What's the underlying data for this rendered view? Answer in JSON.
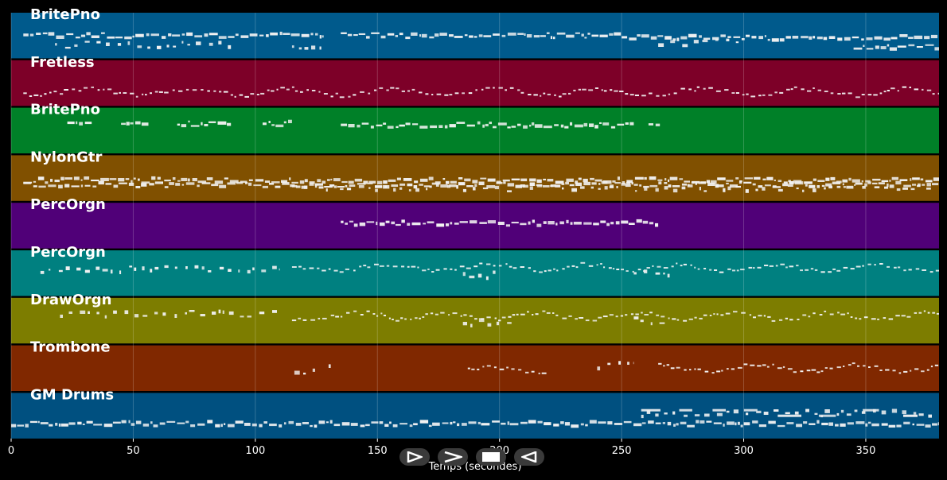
{
  "chart_data": {
    "type": "piano-roll",
    "xlabel": "Temps (secondes)",
    "x_ticks": [
      0,
      50,
      100,
      150,
      200,
      250,
      300,
      350
    ],
    "xlim": [
      0,
      380
    ],
    "tracks": [
      {
        "name": "BritePno",
        "color": "#005a8c",
        "segments": [
          [
            5,
            128,
            0.5,
            "dense"
          ],
          [
            135,
            250,
            0.5,
            "dense"
          ],
          [
            250,
            380,
            0.55,
            "dense"
          ],
          [
            18,
            90,
            0.7,
            "sparse"
          ],
          [
            115,
            127,
            0.8,
            "sparse"
          ],
          [
            265,
            300,
            0.65,
            "sparse"
          ],
          [
            345,
            380,
            0.75,
            "dense"
          ]
        ]
      },
      {
        "name": "Fretless",
        "color": "#7d0028",
        "segments": [
          [
            5,
            380,
            0.7,
            "wave"
          ]
        ]
      },
      {
        "name": "BritePno",
        "color": "#008028",
        "segments": [
          [
            23,
            33,
            0.35,
            "dense"
          ],
          [
            45,
            57,
            0.35,
            "dense"
          ],
          [
            68,
            90,
            0.35,
            "dense"
          ],
          [
            103,
            115,
            0.35,
            "dense"
          ],
          [
            135,
            255,
            0.38,
            "dense"
          ],
          [
            261,
            266,
            0.38,
            "dense"
          ]
        ]
      },
      {
        "name": "NylonGtr",
        "color": "#805000",
        "segments": [
          [
            5,
            380,
            0.55,
            "dense"
          ],
          [
            5,
            380,
            0.65,
            "dense"
          ],
          [
            115,
            380,
            0.72,
            "sparse"
          ]
        ]
      },
      {
        "name": "PercOrgn",
        "color": "#500078",
        "segments": [
          [
            135,
            265,
            0.45,
            "dense"
          ]
        ]
      },
      {
        "name": "PercOrgn",
        "color": "#008080",
        "segments": [
          [
            12,
            110,
            0.42,
            "sparse"
          ],
          [
            115,
            380,
            0.38,
            "wave"
          ],
          [
            185,
            200,
            0.55,
            "sparse"
          ],
          [
            255,
            270,
            0.5,
            "sparse"
          ]
        ]
      },
      {
        "name": "DrawOrgn",
        "color": "#7d7d00",
        "segments": [
          [
            20,
            110,
            0.35,
            "sparse"
          ],
          [
            115,
            380,
            0.4,
            "wave"
          ],
          [
            185,
            205,
            0.55,
            "sparse"
          ],
          [
            255,
            270,
            0.5,
            "sparse"
          ]
        ]
      },
      {
        "name": "Trombone",
        "color": "#802800",
        "segments": [
          [
            116,
            125,
            0.55,
            "sparse"
          ],
          [
            130,
            134,
            0.5,
            "sparse"
          ],
          [
            187,
            220,
            0.55,
            "wave"
          ],
          [
            240,
            255,
            0.45,
            "sparse"
          ],
          [
            265,
            380,
            0.5,
            "wave"
          ]
        ]
      },
      {
        "name": "GM Drums",
        "color": "#005080",
        "segments": [
          [
            0,
            380,
            0.68,
            "dense"
          ],
          [
            258,
            380,
            0.45,
            "sparse"
          ],
          [
            258,
            380,
            0.38,
            "dash"
          ]
        ]
      }
    ]
  },
  "controls": {
    "play_icon": "play-outline-icon",
    "forward_icon": "chevron-right-icon",
    "stop_icon": "stop-icon",
    "back_icon": "back-outline-icon"
  }
}
